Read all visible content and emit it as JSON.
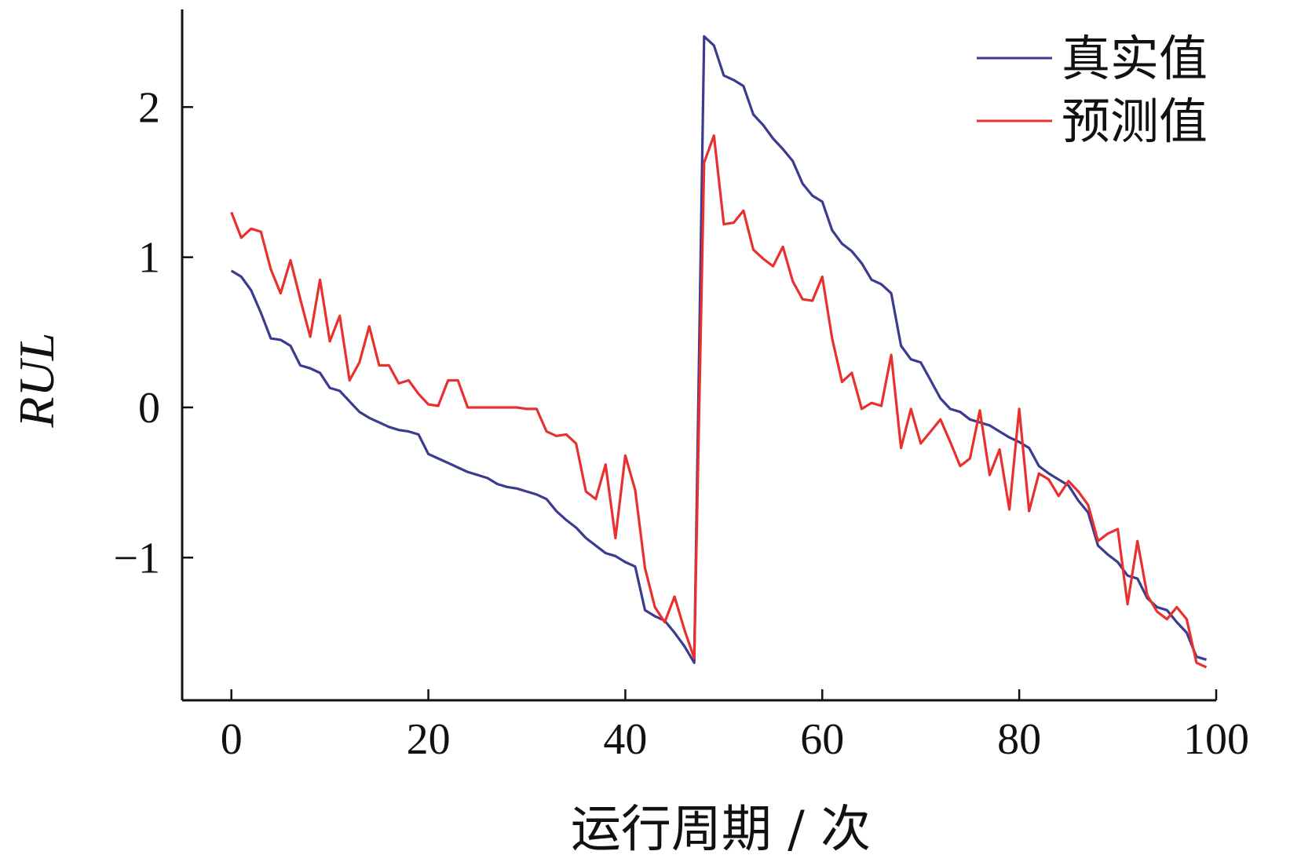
{
  "chart_data": {
    "type": "line",
    "title": "",
    "xlabel": "运行周期 / 次",
    "ylabel": "RUL",
    "xlim": [
      -5,
      100
    ],
    "ylim": [
      -1.95,
      2.65
    ],
    "xticks": [
      0,
      20,
      40,
      60,
      80,
      100
    ],
    "yticks": [
      -1,
      0,
      1,
      2
    ],
    "ytick_labels": [
      "−1",
      "0",
      "1",
      "2"
    ],
    "grid": false,
    "legend_position": "top-right",
    "series": [
      {
        "name": "真实值",
        "color": "#3b3b8f",
        "points": [
          [
            0,
            0.91
          ],
          [
            1,
            0.87
          ],
          [
            2,
            0.78
          ],
          [
            3,
            0.63
          ],
          [
            4,
            0.46
          ],
          [
            5,
            0.45
          ],
          [
            6,
            0.41
          ],
          [
            7,
            0.28
          ],
          [
            8,
            0.26
          ],
          [
            9,
            0.23
          ],
          [
            10,
            0.13
          ],
          [
            11,
            0.11
          ],
          [
            12,
            0.04
          ],
          [
            13,
            -0.03
          ],
          [
            14,
            -0.07
          ],
          [
            15,
            -0.1
          ],
          [
            16,
            -0.13
          ],
          [
            17,
            -0.15
          ],
          [
            18,
            -0.16
          ],
          [
            19,
            -0.18
          ],
          [
            20,
            -0.31
          ],
          [
            21,
            -0.34
          ],
          [
            22,
            -0.37
          ],
          [
            23,
            -0.4
          ],
          [
            24,
            -0.43
          ],
          [
            25,
            -0.45
          ],
          [
            26,
            -0.47
          ],
          [
            27,
            -0.51
          ],
          [
            28,
            -0.53
          ],
          [
            29,
            -0.54
          ],
          [
            30,
            -0.56
          ],
          [
            31,
            -0.58
          ],
          [
            32,
            -0.61
          ],
          [
            33,
            -0.69
          ],
          [
            34,
            -0.75
          ],
          [
            35,
            -0.8
          ],
          [
            36,
            -0.87
          ],
          [
            37,
            -0.92
          ],
          [
            38,
            -0.97
          ],
          [
            39,
            -0.99
          ],
          [
            40,
            -1.03
          ],
          [
            41,
            -1.06
          ],
          [
            42,
            -1.35
          ],
          [
            43,
            -1.39
          ],
          [
            44,
            -1.42
          ],
          [
            45,
            -1.5
          ],
          [
            46,
            -1.59
          ],
          [
            47,
            -1.7
          ],
          [
            48,
            2.47
          ],
          [
            49,
            2.41
          ],
          [
            50,
            2.21
          ],
          [
            51,
            2.18
          ],
          [
            52,
            2.14
          ],
          [
            53,
            1.95
          ],
          [
            54,
            1.88
          ],
          [
            55,
            1.79
          ],
          [
            56,
            1.72
          ],
          [
            57,
            1.64
          ],
          [
            58,
            1.49
          ],
          [
            59,
            1.41
          ],
          [
            60,
            1.37
          ],
          [
            61,
            1.18
          ],
          [
            62,
            1.09
          ],
          [
            63,
            1.04
          ],
          [
            64,
            0.96
          ],
          [
            65,
            0.85
          ],
          [
            66,
            0.82
          ],
          [
            67,
            0.76
          ],
          [
            68,
            0.41
          ],
          [
            69,
            0.32
          ],
          [
            70,
            0.3
          ],
          [
            71,
            0.18
          ],
          [
            72,
            0.06
          ],
          [
            73,
            -0.01
          ],
          [
            74,
            -0.03
          ],
          [
            75,
            -0.08
          ],
          [
            76,
            -0.1
          ],
          [
            77,
            -0.12
          ],
          [
            78,
            -0.16
          ],
          [
            79,
            -0.2
          ],
          [
            80,
            -0.23
          ],
          [
            81,
            -0.27
          ],
          [
            82,
            -0.39
          ],
          [
            83,
            -0.44
          ],
          [
            84,
            -0.48
          ],
          [
            85,
            -0.52
          ],
          [
            86,
            -0.62
          ],
          [
            87,
            -0.7
          ],
          [
            88,
            -0.92
          ],
          [
            89,
            -0.98
          ],
          [
            90,
            -1.03
          ],
          [
            91,
            -1.12
          ],
          [
            92,
            -1.14
          ],
          [
            93,
            -1.27
          ],
          [
            94,
            -1.33
          ],
          [
            95,
            -1.35
          ],
          [
            96,
            -1.43
          ],
          [
            97,
            -1.5
          ],
          [
            98,
            -1.66
          ],
          [
            99,
            -1.68
          ]
        ]
      },
      {
        "name": "预测值",
        "color": "#e8302e",
        "points": [
          [
            0,
            1.3
          ],
          [
            1,
            1.13
          ],
          [
            2,
            1.19
          ],
          [
            3,
            1.17
          ],
          [
            4,
            0.92
          ],
          [
            5,
            0.76
          ],
          [
            6,
            0.98
          ],
          [
            7,
            0.72
          ],
          [
            8,
            0.47
          ],
          [
            9,
            0.85
          ],
          [
            10,
            0.44
          ],
          [
            11,
            0.61
          ],
          [
            12,
            0.18
          ],
          [
            13,
            0.3
          ],
          [
            14,
            0.54
          ],
          [
            15,
            0.28
          ],
          [
            16,
            0.28
          ],
          [
            17,
            0.16
          ],
          [
            18,
            0.18
          ],
          [
            19,
            0.09
          ],
          [
            20,
            0.02
          ],
          [
            21,
            0.01
          ],
          [
            22,
            0.18
          ],
          [
            23,
            0.18
          ],
          [
            24,
            0.0
          ],
          [
            25,
            0.0
          ],
          [
            26,
            0.0
          ],
          [
            27,
            0.0
          ],
          [
            28,
            0.0
          ],
          [
            29,
            0.0
          ],
          [
            30,
            -0.01
          ],
          [
            31,
            -0.01
          ],
          [
            32,
            -0.16
          ],
          [
            33,
            -0.19
          ],
          [
            34,
            -0.18
          ],
          [
            35,
            -0.24
          ],
          [
            36,
            -0.56
          ],
          [
            37,
            -0.61
          ],
          [
            38,
            -0.38
          ],
          [
            39,
            -0.87
          ],
          [
            40,
            -0.32
          ],
          [
            41,
            -0.55
          ],
          [
            42,
            -1.07
          ],
          [
            43,
            -1.33
          ],
          [
            44,
            -1.43
          ],
          [
            45,
            -1.26
          ],
          [
            46,
            -1.48
          ],
          [
            47,
            -1.67
          ],
          [
            48,
            1.63
          ],
          [
            49,
            1.81
          ],
          [
            50,
            1.22
          ],
          [
            51,
            1.23
          ],
          [
            52,
            1.31
          ],
          [
            53,
            1.05
          ],
          [
            54,
            0.99
          ],
          [
            55,
            0.94
          ],
          [
            56,
            1.07
          ],
          [
            57,
            0.84
          ],
          [
            58,
            0.72
          ],
          [
            59,
            0.71
          ],
          [
            60,
            0.87
          ],
          [
            61,
            0.46
          ],
          [
            62,
            0.17
          ],
          [
            63,
            0.23
          ],
          [
            64,
            -0.01
          ],
          [
            65,
            0.03
          ],
          [
            66,
            0.01
          ],
          [
            67,
            0.35
          ],
          [
            68,
            -0.27
          ],
          [
            69,
            -0.01
          ],
          [
            70,
            -0.24
          ],
          [
            71,
            -0.16
          ],
          [
            72,
            -0.08
          ],
          [
            73,
            -0.23
          ],
          [
            74,
            -0.39
          ],
          [
            75,
            -0.34
          ],
          [
            76,
            -0.02
          ],
          [
            77,
            -0.45
          ],
          [
            78,
            -0.28
          ],
          [
            79,
            -0.68
          ],
          [
            80,
            -0.01
          ],
          [
            81,
            -0.69
          ],
          [
            82,
            -0.44
          ],
          [
            83,
            -0.48
          ],
          [
            84,
            -0.59
          ],
          [
            85,
            -0.49
          ],
          [
            86,
            -0.56
          ],
          [
            87,
            -0.65
          ],
          [
            88,
            -0.89
          ],
          [
            89,
            -0.84
          ],
          [
            90,
            -0.81
          ],
          [
            91,
            -1.31
          ],
          [
            92,
            -0.89
          ],
          [
            93,
            -1.25
          ],
          [
            94,
            -1.36
          ],
          [
            95,
            -1.41
          ],
          [
            96,
            -1.33
          ],
          [
            97,
            -1.41
          ],
          [
            98,
            -1.7
          ],
          [
            99,
            -1.73
          ]
        ]
      }
    ]
  }
}
